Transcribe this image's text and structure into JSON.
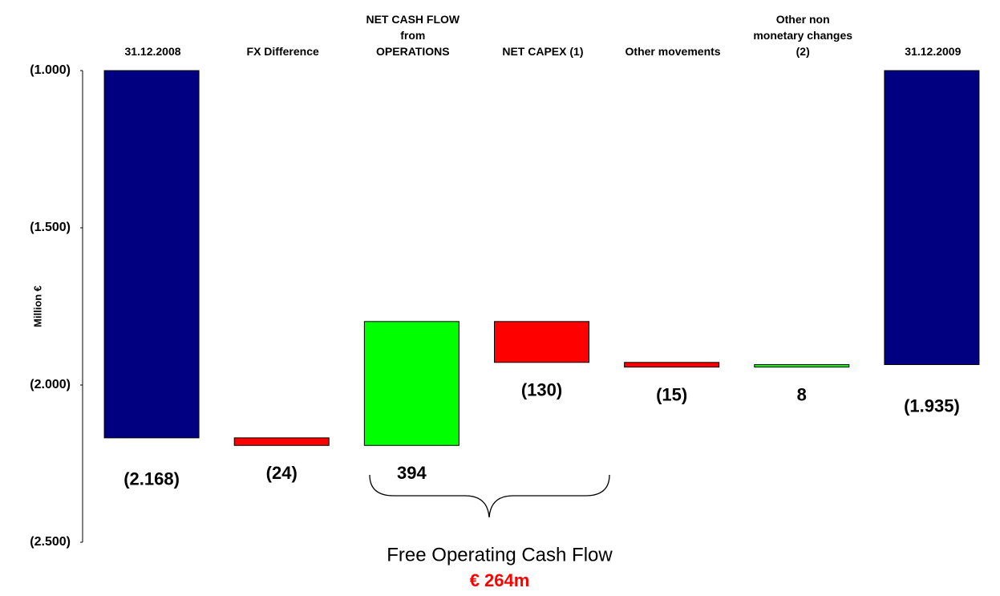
{
  "chart_data": {
    "type": "waterfall",
    "y_label": "Million €",
    "categories": [
      "31.12.2008",
      "FX Difference",
      "NET CASH FLOW\nfrom\nOPERATIONS",
      "NET CAPEX (1)",
      "Other movements",
      "Other non\nmonetary changes\n(2)",
      "31.12.2009"
    ],
    "values": [
      -2168,
      -24,
      394,
      -130,
      -15,
      8,
      -1935
    ],
    "value_labels": [
      "(2.168)",
      "(24)",
      "394",
      "(130)",
      "(15)",
      "8",
      "(1.935)"
    ],
    "colors": [
      "#000080",
      "#ff0000",
      "#00ff00",
      "#ff0000",
      "#ff0000",
      "#00ff00",
      "#000080"
    ],
    "ylim": [
      -2500,
      -1000
    ],
    "yticks": [
      {
        "value": -1000,
        "label": "(1.000)"
      },
      {
        "value": -1500,
        "label": "(1.500)"
      },
      {
        "value": -2000,
        "label": "(2.000)"
      },
      {
        "value": -2500,
        "label": "(2.500)"
      }
    ],
    "annotation": {
      "text": "Free Operating Cash Flow",
      "value_text": "€ 264m"
    }
  }
}
